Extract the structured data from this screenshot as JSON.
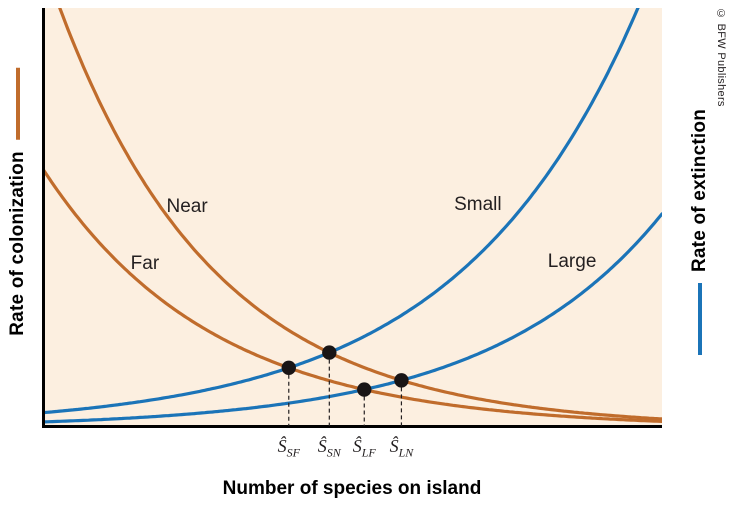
{
  "labels": {
    "copyright": "© BFW Publishers"
  },
  "colors": {
    "colonization": "#c06c2c",
    "extinction": "#1b74b8",
    "plot_bg": "#fcefe0",
    "axis": "#000000",
    "dot": "#191516",
    "text": "#231f20"
  },
  "chart_data": {
    "type": "line",
    "xlabel": "Number of species on island",
    "ylabel_left": "Rate of colonization",
    "ylabel_right": "Rate of extinction",
    "x_range": [
      0,
      1
    ],
    "y_range": [
      0,
      1
    ],
    "grid": false,
    "numeric_ticks": false,
    "model": "y = a*exp(k*x) with x,y normalized to [0,1] of plot area",
    "series": [
      {
        "name": "Near",
        "family": "colonization",
        "color": "#c06c2c",
        "a": 1.12,
        "k": -3.95,
        "label_pos": {
          "x": 0.234,
          "y": 0.526
        }
      },
      {
        "name": "Far",
        "family": "colonization",
        "color": "#c06c2c",
        "a": 0.62,
        "k": -3.68,
        "label_pos": {
          "x": 0.166,
          "y": 0.39
        }
      },
      {
        "name": "Small",
        "family": "extinction",
        "color": "#1b74b8",
        "a": 0.0363,
        "k": 3.45,
        "label_pos": {
          "x": 0.703,
          "y": 0.531
        }
      },
      {
        "name": "Large",
        "family": "extinction",
        "color": "#1b74b8",
        "a": 0.01427,
        "k": 3.576,
        "label_pos": {
          "x": 0.855,
          "y": 0.395
        }
      }
    ],
    "equilibria": [
      {
        "symbol": "Ŝ",
        "sub": "SF",
        "between": [
          "Far",
          "Small"
        ]
      },
      {
        "symbol": "Ŝ",
        "sub": "SN",
        "between": [
          "Near",
          "Small"
        ]
      },
      {
        "symbol": "Ŝ",
        "sub": "LF",
        "between": [
          "Far",
          "Large"
        ]
      },
      {
        "symbol": "Ŝ",
        "sub": "LN",
        "between": [
          "Near",
          "Large"
        ]
      }
    ]
  }
}
